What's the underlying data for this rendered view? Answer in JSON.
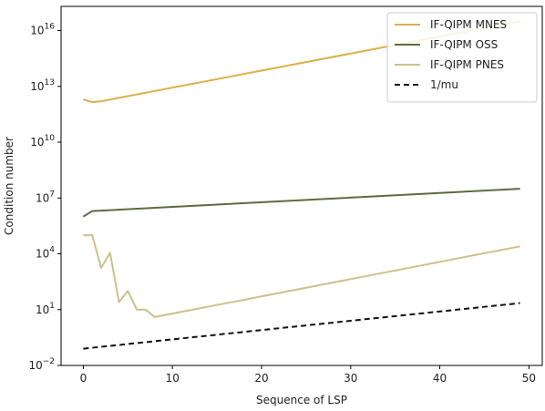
{
  "chart_data": {
    "type": "line",
    "xlabel": "Sequence of LSP",
    "ylabel": "Condition number",
    "xlim": [
      -2.5,
      51.5
    ],
    "ylim_log10": [
      -2,
      17.3
    ],
    "yscale": "log",
    "xticks": [
      {
        "value": 0,
        "label": "0"
      },
      {
        "value": 10,
        "label": "10"
      },
      {
        "value": 20,
        "label": "20"
      },
      {
        "value": 30,
        "label": "30"
      },
      {
        "value": 40,
        "label": "40"
      },
      {
        "value": 50,
        "label": "50"
      }
    ],
    "yticks": [
      {
        "exp": -2,
        "base": "10",
        "sup": "−2"
      },
      {
        "exp": 1,
        "base": "10",
        "sup": "1"
      },
      {
        "exp": 4,
        "base": "10",
        "sup": "4"
      },
      {
        "exp": 7,
        "base": "10",
        "sup": "7"
      },
      {
        "exp": 10,
        "base": "10",
        "sup": "10"
      },
      {
        "exp": 13,
        "base": "10",
        "sup": "13"
      },
      {
        "exp": 16,
        "base": "10",
        "sup": "16"
      }
    ],
    "grid": false,
    "legend": "top-right",
    "series": [
      {
        "name": "IF-QIPM MNES",
        "color": "#dbb04a",
        "dash": "solid",
        "x": [
          0,
          1,
          2,
          49
        ],
        "y_log10": [
          12.3,
          12.15,
          12.2,
          16.5
        ]
      },
      {
        "name": "IF-QIPM OSS",
        "color": "#5e6b3f",
        "dash": "solid",
        "x": [
          0,
          1,
          49
        ],
        "y_log10": [
          6.0,
          6.3,
          7.5
        ]
      },
      {
        "name": "IF-QIPM PNES",
        "color": "#cbc189",
        "dash": "solid",
        "x": [
          0,
          1,
          2,
          3,
          4,
          5,
          6,
          7,
          8,
          49
        ],
        "y_log10": [
          5.0,
          5.0,
          3.25,
          4.05,
          1.4,
          2.0,
          1.0,
          1.0,
          0.6,
          4.4
        ]
      },
      {
        "name": "1/mu",
        "color": "#111111",
        "dash": "dashed",
        "x": [
          0,
          49
        ],
        "y_log10": [
          -1.1,
          1.35
        ]
      }
    ]
  }
}
